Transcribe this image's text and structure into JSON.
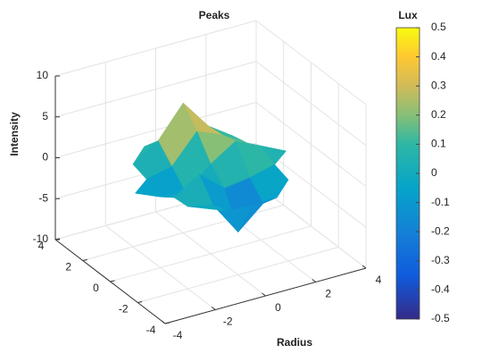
{
  "chart_data": {
    "type": "surface",
    "title": "Peaks",
    "xlabel": "Radius",
    "zlabel": "Intensity",
    "x": [
      -3,
      -2,
      -1,
      0,
      1,
      2,
      3
    ],
    "y": [
      -3,
      -2,
      -1,
      0,
      1,
      2,
      3
    ],
    "z": [
      [
        null,
        null,
        -0.03,
        -0.24,
        -0.11,
        null,
        null
      ],
      [
        null,
        0.05,
        -0.6,
        -4.76,
        -2.1,
        -0.06,
        null
      ],
      [
        null,
        -0.13,
        1.85,
        -0.72,
        -0.27,
        0.5,
        null
      ],
      [
        -0.04,
        -1.33,
        -1.65,
        0.98,
        2.94,
        1.41,
        0.03
      ],
      [
        null,
        -0.48,
        0.23,
        3.69,
        2.43,
        0.58,
        null
      ],
      [
        null,
        0.08,
        2.09,
        5.86,
        2.21,
        0.13,
        null
      ],
      [
        null,
        null,
        0.11,
        0.3,
        0.11,
        null,
        null
      ]
    ],
    "xlim": [
      -4,
      4
    ],
    "ylim": [
      -4,
      4
    ],
    "zlim": [
      -10,
      10
    ],
    "xticks": [
      -4,
      -2,
      0,
      2,
      4
    ],
    "yticks": [
      -4,
      -2,
      0,
      2,
      4
    ],
    "zticks": [
      -10,
      -5,
      0,
      5,
      10
    ],
    "grid": true,
    "colormap": "parula",
    "colorbar": {
      "label": "Lux",
      "clim": [
        -0.5,
        0.5
      ],
      "ticks": [
        -0.5,
        -0.4,
        -0.3,
        -0.2,
        -0.1,
        0,
        0.1,
        0.2,
        0.3,
        0.4,
        0.5
      ]
    }
  }
}
